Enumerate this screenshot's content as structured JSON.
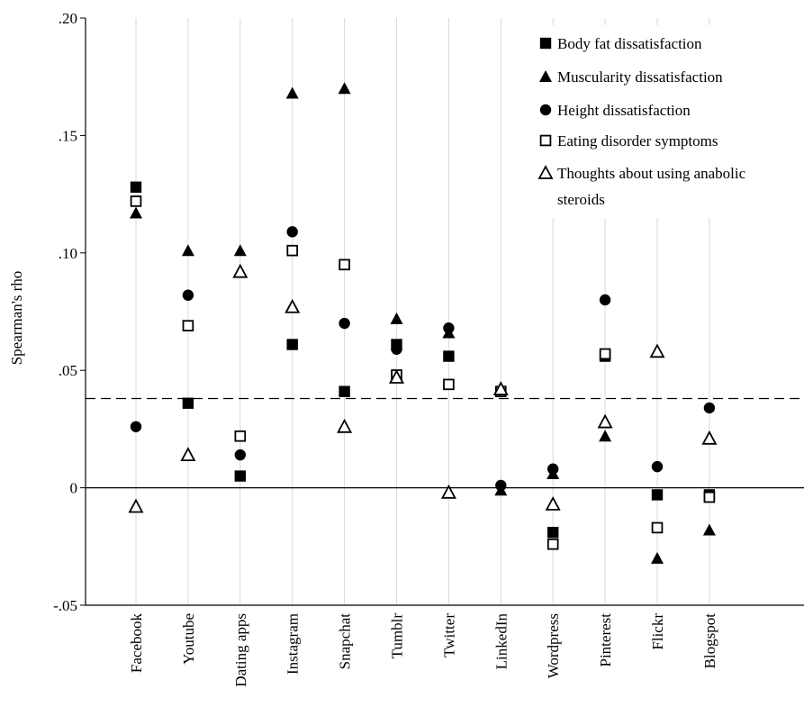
{
  "chart_data": {
    "type": "scatter",
    "title": "",
    "xlabel": "",
    "ylabel": "Spearman's rho",
    "ylim": [
      -0.05,
      0.2
    ],
    "yticks": [
      -0.05,
      0,
      0.05,
      0.1,
      0.15,
      0.2
    ],
    "ytick_labels": [
      "-.05",
      "0",
      ".05",
      ".10",
      ".15",
      ".20"
    ],
    "grid": "vertical",
    "legend_position": "top-right",
    "reference_line": {
      "y": 0.038,
      "style": "dashed"
    },
    "zero_line": {
      "y": 0,
      "style": "solid"
    },
    "categories": [
      "Facebook",
      "Youtube",
      "Dating apps",
      "Instagram",
      "Snapchat",
      "Tumblr",
      "Twitter",
      "LinkedIn",
      "Wordpress",
      "Pinterest",
      "Flickr",
      "Blogspot"
    ],
    "series": [
      {
        "name": "Body fat dissatisfaction",
        "marker": "filled-square",
        "values": [
          0.128,
          0.036,
          0.005,
          0.061,
          0.041,
          0.061,
          0.056,
          0.041,
          -0.019,
          0.056,
          -0.003,
          -0.003
        ]
      },
      {
        "name": "Muscularity dissatisfaction",
        "marker": "filled-triangle",
        "values": [
          0.117,
          0.101,
          0.101,
          0.168,
          0.17,
          0.072,
          0.066,
          -0.001,
          0.006,
          0.022,
          -0.03,
          -0.018
        ]
      },
      {
        "name": "Height dissatisfaction",
        "marker": "filled-circle",
        "values": [
          0.026,
          0.082,
          0.014,
          0.109,
          0.07,
          0.059,
          0.068,
          0.001,
          0.008,
          0.08,
          0.009,
          0.034
        ]
      },
      {
        "name": "Eating disorder symptoms",
        "marker": "open-square",
        "values": [
          0.122,
          0.069,
          0.022,
          0.101,
          0.095,
          0.048,
          0.044,
          0.041,
          -0.024,
          0.057,
          -0.017,
          -0.004
        ]
      },
      {
        "name": "Thoughts about using anabolic steroids",
        "marker": "open-triangle",
        "values": [
          -0.008,
          0.014,
          0.092,
          0.077,
          0.026,
          0.047,
          -0.002,
          0.042,
          -0.007,
          0.028,
          0.058,
          0.021
        ]
      }
    ]
  },
  "legend": {
    "items": [
      {
        "marker": "filled-square",
        "lines": [
          "Body fat dissatisfaction"
        ]
      },
      {
        "marker": "filled-triangle",
        "lines": [
          "Muscularity dissatisfaction"
        ]
      },
      {
        "marker": "filled-circle",
        "lines": [
          "Height dissatisfaction"
        ]
      },
      {
        "marker": "open-square",
        "lines": [
          "Eating disorder symptoms"
        ]
      },
      {
        "marker": "open-triangle",
        "lines": [
          "Thoughts about using anabolic",
          "steroids"
        ]
      }
    ]
  },
  "colors": {
    "ink": "#000000",
    "grid": "#d9d9d9",
    "background": "#ffffff"
  }
}
